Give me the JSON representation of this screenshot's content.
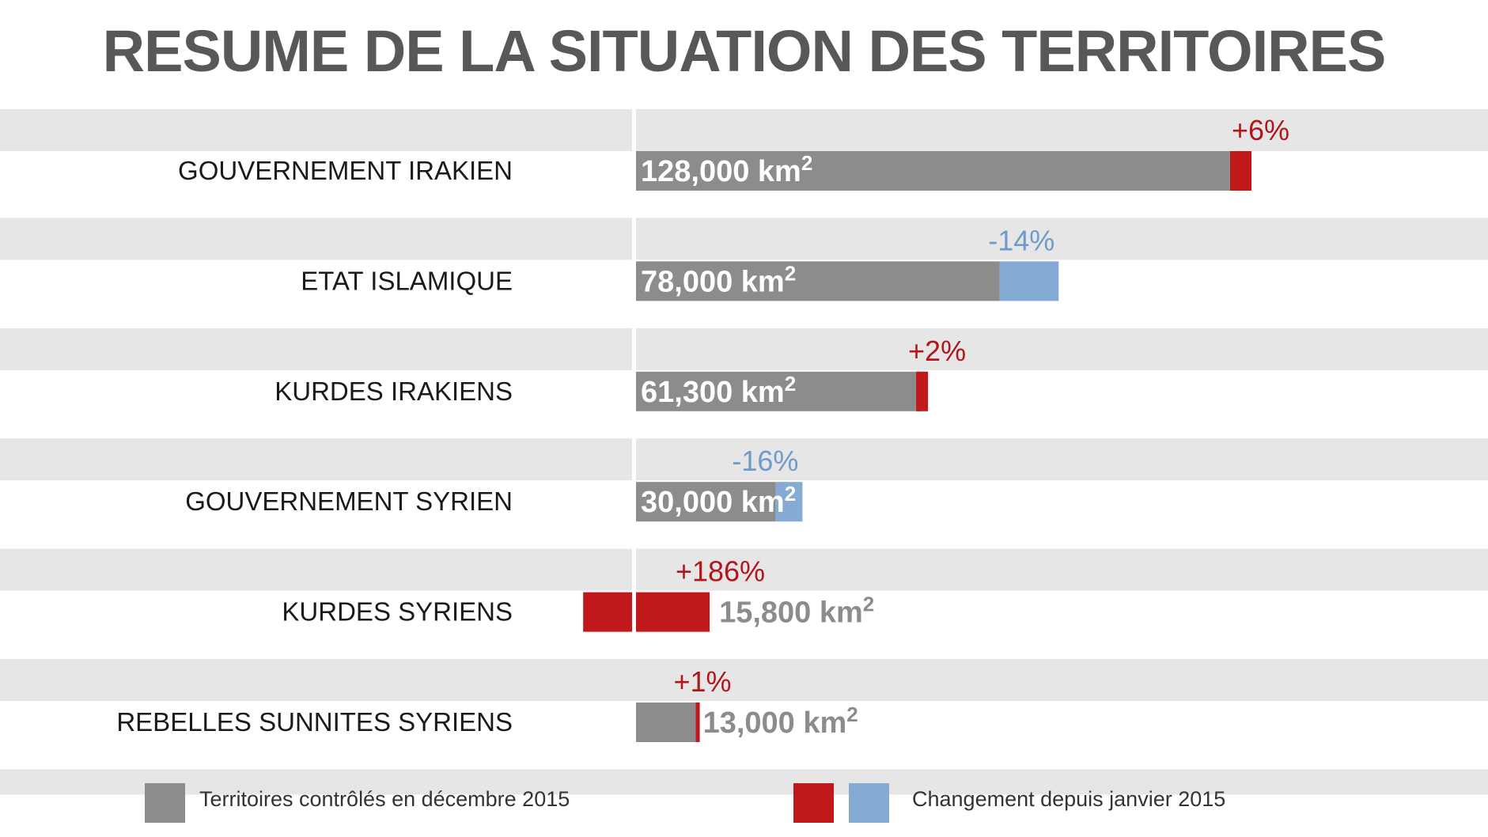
{
  "title": "RESUME DE LA SITUATION DES TERRITOIRES",
  "colors": {
    "controlled": "#8c8c8c",
    "gain": "#c1181c",
    "loss": "#85aad4",
    "gain_label": "#b2161b",
    "loss_label": "#6f9acb",
    "band": "#e6e6e7",
    "label_text": "#1a1a1a",
    "value_text_inside": "#ffffff",
    "value_text_outside": "#8c8c8c"
  },
  "legend": {
    "controlled": "Territoires contrôlés en décembre 2015",
    "change": "Changement depuis janvier 2015"
  },
  "chart_data": {
    "type": "bar",
    "orientation": "horizontal",
    "title": "RESUME DE LA SITUATION DES TERRITOIRES",
    "unit": "km2",
    "categories": [
      "GOUVERNEMENT IRAKIEN",
      "ETAT ISLAMIQUE",
      "KURDES IRAKIENS",
      "GOUVERNEMENT SYRIEN",
      "KURDES SYRIENS",
      "REBELLES SUNNITES SYRIENS"
    ],
    "series": [
      {
        "name": "Territoires contrôlés en décembre 2015",
        "values": [
          128000,
          78000,
          61300,
          30000,
          15800,
          13000
        ]
      },
      {
        "name": "Changement depuis janvier 2015",
        "values": [
          6,
          -14,
          2,
          -16,
          186,
          1
        ]
      }
    ],
    "value_labels": [
      "128,000 km",
      "78,000 km",
      "61,300 km",
      "30,000 km",
      "15,800 km",
      "13,000 km"
    ],
    "unit_superscript": "2",
    "change_labels": [
      "+6%",
      "-14%",
      "+2%",
      "-16%",
      "+186%",
      "+1%"
    ],
    "legend_position": "bottom",
    "grid": false
  }
}
